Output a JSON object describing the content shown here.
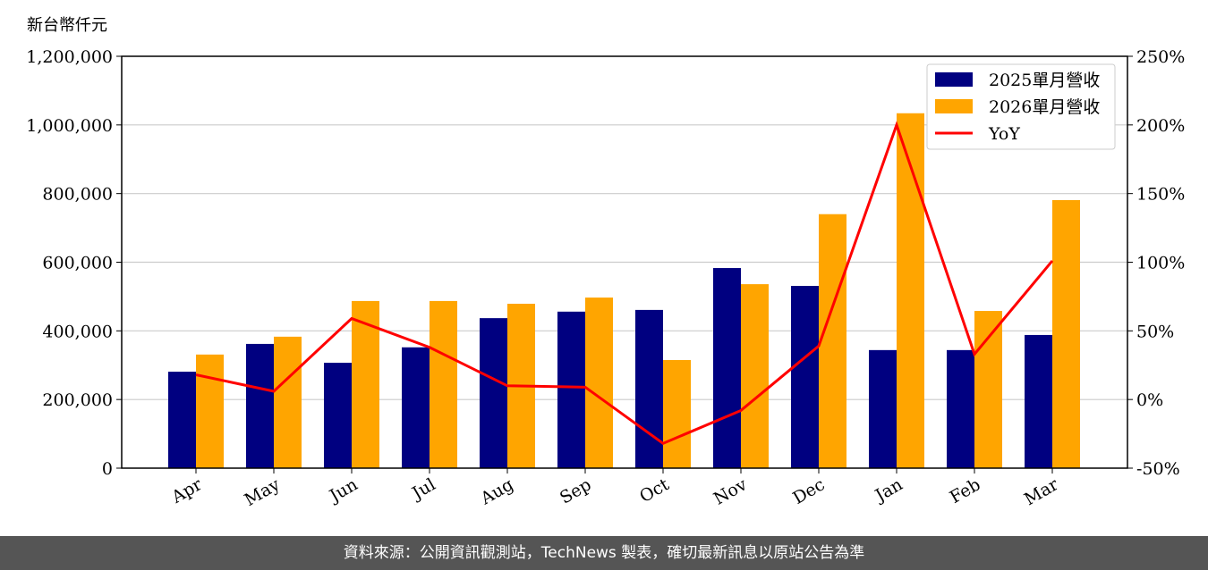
{
  "unit_label": "新台幣仟元",
  "footer": "資料來源：公開資訊觀測站，TechNews 製表，確切最新訊息以原站公告為準",
  "watermark": "TechNews",
  "chart_data": {
    "type": "bar+line",
    "categories": [
      "Apr",
      "May",
      "Jun",
      "Jul",
      "Aug",
      "Sep",
      "Oct",
      "Nov",
      "Dec",
      "Jan",
      "Feb",
      "Mar"
    ],
    "series": [
      {
        "name": "2025單月營收",
        "type": "bar",
        "axis": "left",
        "color": "#000080",
        "values": [
          281000,
          362000,
          307000,
          352000,
          437000,
          456000,
          461000,
          583000,
          531000,
          344000,
          344000,
          388000
        ]
      },
      {
        "name": "2026單月營收",
        "type": "bar",
        "axis": "left",
        "color": "#FFA500",
        "values": [
          331000,
          383000,
          487000,
          487000,
          479000,
          497000,
          315000,
          536000,
          740000,
          1034000,
          458000,
          781000
        ]
      },
      {
        "name": "YoY",
        "type": "line",
        "axis": "right",
        "color": "#FF0000",
        "values": [
          18,
          6,
          59,
          38,
          10,
          9,
          -32,
          -8,
          39,
          200,
          33,
          101
        ]
      }
    ],
    "left_axis": {
      "ylim": [
        0,
        1200000
      ],
      "ticks": [
        "0",
        "200,000",
        "400,000",
        "600,000",
        "800,000",
        "1,000,000",
        "1,200,000"
      ]
    },
    "right_axis": {
      "ylim": [
        -50,
        250
      ],
      "ticks": [
        "-50%",
        "0%",
        "50%",
        "100%",
        "150%",
        "200%",
        "250%"
      ]
    },
    "grid": true,
    "legend": "top-right"
  }
}
